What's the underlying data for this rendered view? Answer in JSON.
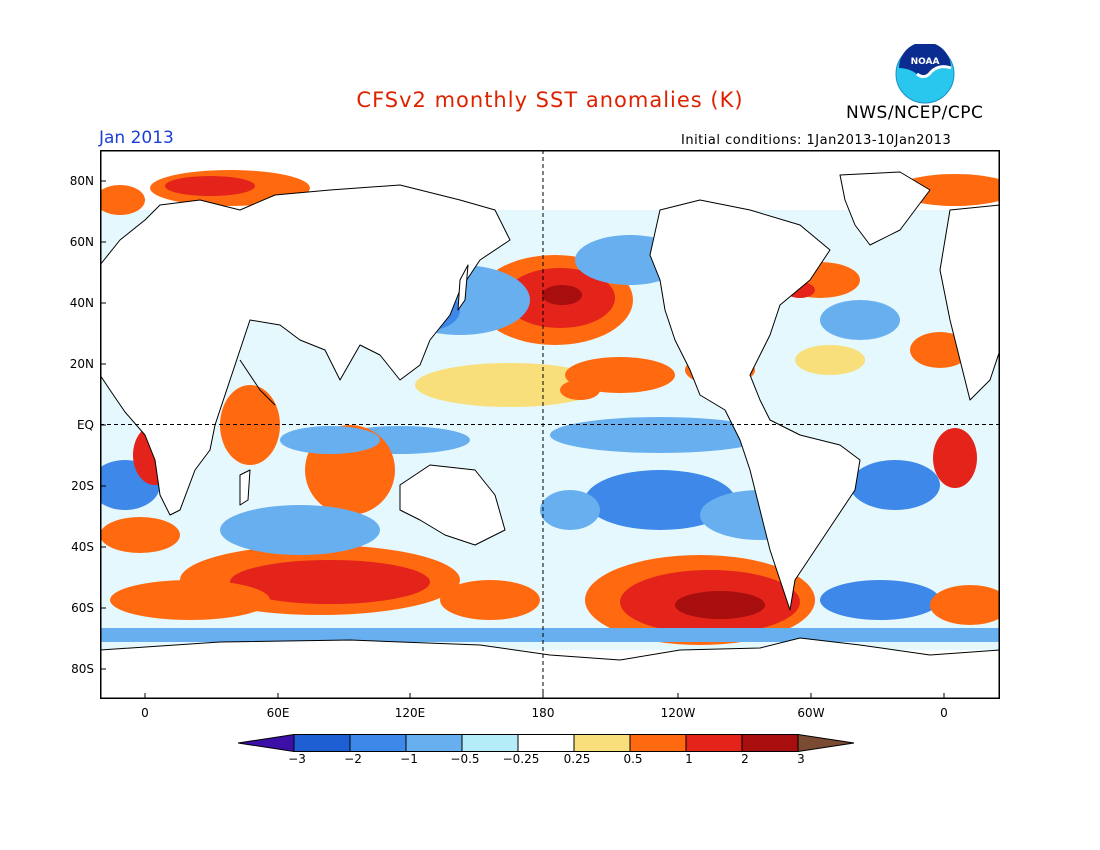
{
  "header": {
    "title": "CFSv2 monthly SST anomalies (K)",
    "agency": "NWS/NCEP/CPC",
    "logo_text": "NOAA",
    "month": "Jan 2013",
    "initial_conditions": "Initial conditions: 1Jan2013-10Jan2013"
  },
  "axes": {
    "lat_labels": [
      "80N",
      "60N",
      "40N",
      "20N",
      "EQ",
      "20S",
      "40S",
      "60S",
      "80S"
    ],
    "lon_labels": [
      "0",
      "60E",
      "120E",
      "180",
      "120W",
      "60W",
      "0"
    ]
  },
  "colorbar": {
    "labels": [
      "-3",
      "-2",
      "-1",
      "-0.5",
      "-0.25",
      "0.25",
      "0.5",
      "1",
      "2",
      "3"
    ],
    "colors": [
      "#3b0fa8",
      "#1f5fd4",
      "#3d88e8",
      "#68aff0",
      "#b4ecf8",
      "#ffffff",
      "#f9df7b",
      "#ff6a10",
      "#e4231a",
      "#a80e0e",
      "#7b4a33"
    ]
  },
  "colors": {
    "title": "#dd2200",
    "month": "#1a3fd6",
    "land": "#ffffff"
  }
}
